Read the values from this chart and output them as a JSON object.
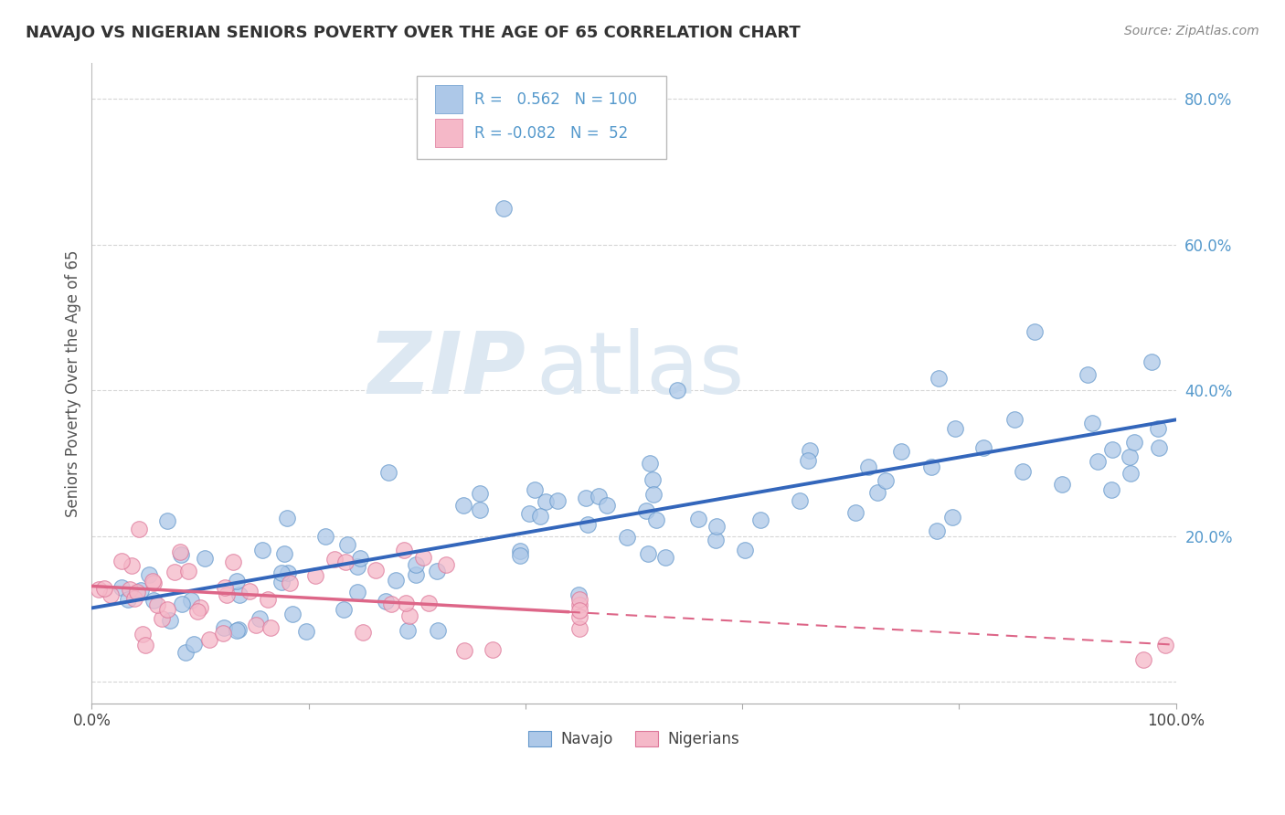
{
  "title": "NAVAJO VS NIGERIAN SENIORS POVERTY OVER THE AGE OF 65 CORRELATION CHART",
  "source_text": "Source: ZipAtlas.com",
  "ylabel": "Seniors Poverty Over the Age of 65",
  "navajo_R": 0.562,
  "navajo_N": 100,
  "nigerian_R": -0.082,
  "nigerian_N": 52,
  "navajo_color": "#adc8e8",
  "nigerian_color": "#f5b8c8",
  "navajo_edge_color": "#6699cc",
  "nigerian_edge_color": "#dd7799",
  "navajo_line_color": "#3366bb",
  "nigerian_line_color": "#dd6688",
  "watermark_color": "#dde8f0",
  "tick_color": "#5599cc",
  "background_color": "#ffffff",
  "grid_color": "#cccccc"
}
